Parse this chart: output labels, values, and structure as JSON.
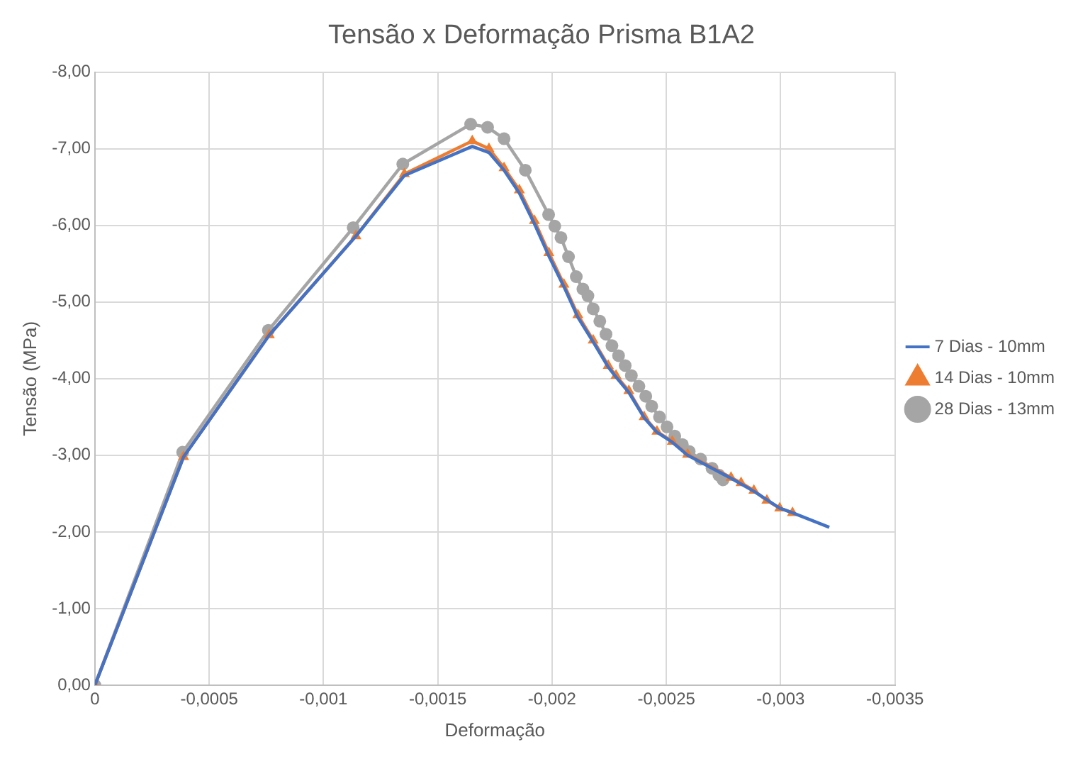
{
  "chart_data": {
    "type": "line",
    "title": "Tensão x Deformação Prisma B1A2",
    "xlabel": "Deformação",
    "ylabel": "Tensão (MPa)",
    "xlim": [
      0,
      -0.0035
    ],
    "xticks": [
      0,
      {
        "value": -0.0005,
        "label": "-0,0005"
      },
      {
        "value": -0.001,
        "label": "-0,001"
      },
      {
        "value": -0.0015,
        "label": "-0,0015"
      },
      {
        "value": -0.002,
        "label": "-0,002"
      },
      {
        "value": -0.0025,
        "label": "-0,0025"
      },
      {
        "value": -0.003,
        "label": "-0,003"
      },
      {
        "value": -0.0035,
        "label": "-0,0035"
      }
    ],
    "ylim": [
      0,
      -8
    ],
    "yticks": [
      {
        "value": 0,
        "label": "0,00"
      },
      {
        "value": -1,
        "label": "-1,00"
      },
      {
        "value": -2,
        "label": "-2,00"
      },
      {
        "value": -3,
        "label": "-3,00"
      },
      {
        "value": -4,
        "label": "-4,00"
      },
      {
        "value": -5,
        "label": "-5,00"
      },
      {
        "value": -6,
        "label": "-6,00"
      },
      {
        "value": -7,
        "label": "-7,00"
      },
      {
        "value": -8,
        "label": "-8,00"
      }
    ],
    "grid": true,
    "legend": "right",
    "line_style": "solid",
    "series": [
      {
        "name": "7 Dias - 10mm",
        "color": "#4472c4",
        "marker": "none",
        "x": [
          0,
          -0.000388,
          -0.000763,
          -0.001142,
          -0.001354,
          -0.001651,
          -0.001724,
          -0.00179,
          -0.001857,
          -0.001923,
          -0.001986,
          -0.002052,
          -0.002113,
          -0.00218,
          -0.002246,
          -0.00228,
          -0.002336,
          -0.002403,
          -0.002459,
          -0.002526,
          -0.002593,
          -0.002783,
          -0.002883,
          -0.002996,
          -0.003052,
          -0.003213
        ],
        "values": [
          0,
          -2.98,
          -4.57,
          -5.86,
          -6.65,
          -7.03,
          -6.95,
          -6.72,
          -6.42,
          -6.02,
          -5.6,
          -5.2,
          -4.8,
          -4.48,
          -4.15,
          -4.02,
          -3.82,
          -3.49,
          -3.3,
          -3.17,
          -3.0,
          -2.7,
          -2.53,
          -2.31,
          -2.25,
          -2.06
        ]
      },
      {
        "name": "14 Dias - 10mm",
        "color": "#ed7d31",
        "marker": "triangle",
        "x": [
          0,
          -0.000388,
          -0.000763,
          -0.001142,
          -0.001354,
          -0.001651,
          -0.001724,
          -0.00179,
          -0.001857,
          -0.001923,
          -0.001986,
          -0.002052,
          -0.002113,
          -0.00218,
          -0.002246,
          -0.00228,
          -0.002336,
          -0.002403,
          -0.002459,
          -0.002526,
          -0.002593,
          -0.002783,
          -0.002827,
          -0.002883,
          -0.00294,
          -0.002996,
          -0.003052
        ],
        "values": [
          0,
          -2.98,
          -4.57,
          -5.86,
          -6.67,
          -7.1,
          -7.0,
          -6.75,
          -6.46,
          -6.06,
          -5.64,
          -5.23,
          -4.83,
          -4.5,
          -4.17,
          -4.04,
          -3.84,
          -3.5,
          -3.31,
          -3.18,
          -3.01,
          -2.71,
          -2.64,
          -2.54,
          -2.41,
          -2.31,
          -2.25
        ]
      },
      {
        "name": "28 Dias - 13mm",
        "color": "#a5a5a5",
        "marker": "circle",
        "x": [
          0,
          -0.000384,
          -0.000759,
          -0.00113,
          -0.001347,
          -0.001644,
          -0.001718,
          -0.00179,
          -0.001883,
          -0.001985,
          -0.002012,
          -0.002039,
          -0.002072,
          -0.002106,
          -0.002135,
          -0.002157,
          -0.00218,
          -0.002209,
          -0.002236,
          -0.002262,
          -0.002291,
          -0.00232,
          -0.002347,
          -0.00238,
          -0.00241,
          -0.002436,
          -0.00247,
          -0.002503,
          -0.002537,
          -0.00257,
          -0.0026,
          -0.00265,
          -0.0027,
          -0.00273,
          -0.002748
        ],
        "values": [
          0,
          -3.04,
          -4.63,
          -5.97,
          -6.8,
          -7.32,
          -7.28,
          -7.13,
          -6.72,
          -6.14,
          -5.99,
          -5.84,
          -5.59,
          -5.33,
          -5.17,
          -5.08,
          -4.91,
          -4.75,
          -4.58,
          -4.43,
          -4.3,
          -4.17,
          -4.04,
          -3.9,
          -3.77,
          -3.64,
          -3.5,
          -3.37,
          -3.25,
          -3.14,
          -3.05,
          -2.95,
          -2.83,
          -2.74,
          -2.68
        ]
      }
    ]
  }
}
